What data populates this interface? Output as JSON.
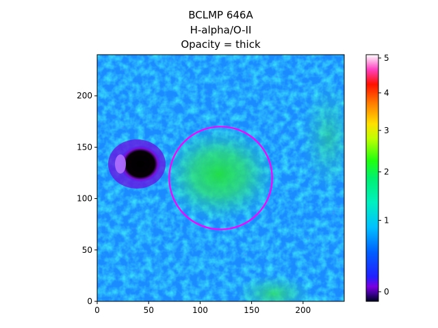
{
  "chart_data": {
    "type": "heatmap",
    "title_lines": [
      "BCLMP 646A",
      "H-alpha/O-II",
      "Opacity = thick"
    ],
    "xlabel": "",
    "ylabel": "",
    "xlim": [
      0,
      240
    ],
    "ylim": [
      0,
      240
    ],
    "x_ticks": [
      0,
      50,
      100,
      150,
      200
    ],
    "y_ticks": [
      0,
      50,
      100,
      150,
      200
    ],
    "colormap": "gist_ncar-like",
    "colorbar": {
      "range": [
        -0.05,
        5.1
      ],
      "scale": "nonlinear",
      "ticks": [
        0,
        1,
        2,
        3,
        4,
        5
      ]
    },
    "circle": {
      "center": [
        120,
        120
      ],
      "radius": 50,
      "color": "#ff00ff"
    },
    "features": [
      {
        "label": "dark blob",
        "center": [
          40,
          133
        ],
        "value": 0
      },
      {
        "label": "green region",
        "center": [
          118,
          125
        ],
        "value": 1.2
      }
    ]
  }
}
